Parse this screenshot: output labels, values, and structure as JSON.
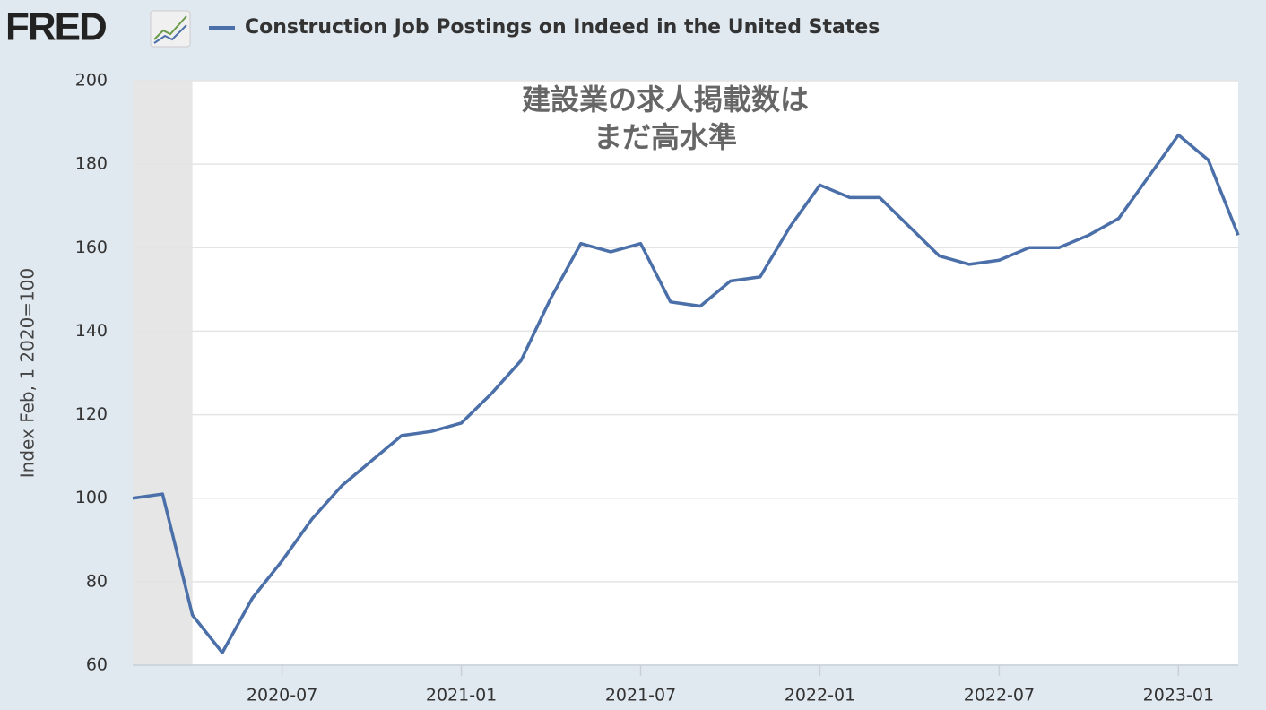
{
  "chart_data": {
    "type": "line",
    "logo": "FRED",
    "title": "Construction Job Postings on Indeed in the United States",
    "annotation": [
      "建設業の求人掲載数は",
      "まだ高水準"
    ],
    "y_label": "Index Feb, 1 2020=100",
    "x": [
      "2020-02",
      "2020-03",
      "2020-04",
      "2020-05",
      "2020-06",
      "2020-07",
      "2020-08",
      "2020-09",
      "2020-10",
      "2020-11",
      "2020-12",
      "2021-01",
      "2021-02",
      "2021-03",
      "2021-04",
      "2021-05",
      "2021-06",
      "2021-07",
      "2021-08",
      "2021-09",
      "2021-10",
      "2021-11",
      "2021-12",
      "2022-01",
      "2022-02",
      "2022-03",
      "2022-04",
      "2022-05",
      "2022-06",
      "2022-07",
      "2022-08",
      "2022-09",
      "2022-10",
      "2022-11",
      "2022-12",
      "2023-01",
      "2023-02",
      "2023-03"
    ],
    "series": [
      {
        "name": "Construction Job Postings on Indeed in the United States",
        "color": "#4b6fa8",
        "values": [
          100,
          101,
          72,
          63,
          76,
          85,
          95,
          103,
          109,
          115,
          116,
          118,
          125,
          133,
          148,
          161,
          159,
          161,
          147,
          146,
          152,
          153,
          165,
          175,
          172,
          172,
          165,
          158,
          156,
          157,
          160,
          160,
          163,
          167,
          177,
          187,
          181,
          163
        ]
      }
    ],
    "recession": [
      "2020-02",
      "2020-04"
    ],
    "xlim": [
      "2020-02",
      "2023-03"
    ],
    "xticks": [
      "2020-07",
      "2021-01",
      "2021-07",
      "2022-01",
      "2022-07",
      "2023-01"
    ],
    "ylim": [
      60,
      200
    ],
    "yticks": [
      60,
      80,
      100,
      120,
      140,
      160,
      180,
      200
    ],
    "grid": true
  }
}
